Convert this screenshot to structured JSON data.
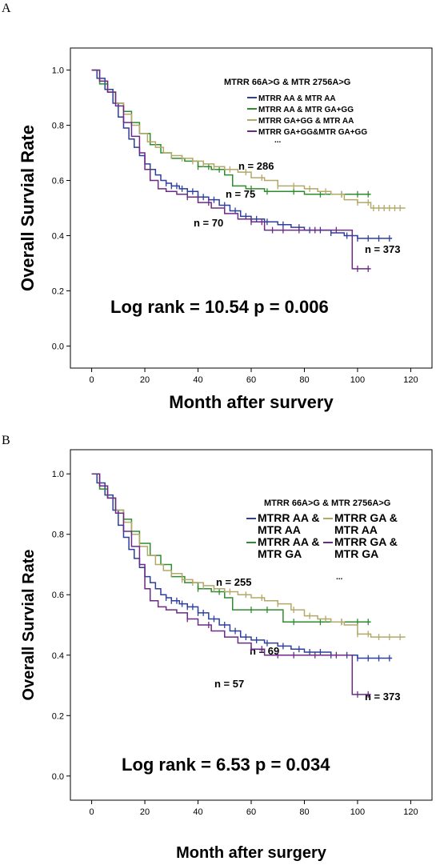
{
  "chart_data": [
    {
      "panel_label": "A",
      "type": "line",
      "xlabel": "Month after survery",
      "ylabel": "Overall Survial Rate",
      "xlim": [
        -8,
        128
      ],
      "ylim": [
        -0.08,
        1.08
      ],
      "xticks": [
        0,
        20,
        40,
        60,
        80,
        100,
        120
      ],
      "yticks": [
        0.0,
        0.2,
        0.4,
        0.6,
        0.8,
        1.0
      ],
      "legend_title": "MTRR 66A>G & MTR 2756A>G",
      "legend_layout": "single-column",
      "legend_ellipsis": "...",
      "legend_placement": "top-right",
      "annotation": "Log rank = 10.54  p = 0.006",
      "series": [
        {
          "name": "MTRR AA & MTR AA",
          "color": "#2d3e9e",
          "count_label": "n = 373",
          "x": [
            0,
            2,
            5,
            8,
            10,
            12,
            14,
            16,
            18,
            20,
            22,
            24,
            26,
            28,
            30,
            33,
            36,
            40,
            44,
            48,
            52,
            56,
            60,
            65,
            70,
            75,
            80,
            85,
            90,
            95,
            100,
            105,
            110,
            113
          ],
          "y": [
            1.0,
            0.97,
            0.93,
            0.88,
            0.83,
            0.79,
            0.75,
            0.72,
            0.69,
            0.66,
            0.64,
            0.62,
            0.6,
            0.59,
            0.58,
            0.57,
            0.56,
            0.54,
            0.53,
            0.51,
            0.49,
            0.47,
            0.46,
            0.45,
            0.44,
            0.43,
            0.42,
            0.42,
            0.41,
            0.4,
            0.39,
            0.39,
            0.39,
            0.39
          ],
          "censor_x": [
            28,
            30,
            32,
            34,
            36,
            38,
            40,
            42,
            46,
            50,
            54,
            58,
            62,
            66,
            72,
            78,
            82,
            86,
            90,
            96,
            100,
            104,
            108,
            112
          ]
        },
        {
          "name": "MTRR AA & MTR GA+GG",
          "color": "#2e8b2e",
          "count_label": "n = 75",
          "x": [
            0,
            3,
            6,
            9,
            12,
            15,
            18,
            22,
            26,
            30,
            35,
            40,
            45,
            50,
            53,
            58,
            65,
            72,
            80,
            90,
            100,
            105
          ],
          "y": [
            1.0,
            0.95,
            0.92,
            0.88,
            0.85,
            0.81,
            0.77,
            0.73,
            0.7,
            0.68,
            0.67,
            0.65,
            0.64,
            0.62,
            0.58,
            0.57,
            0.56,
            0.56,
            0.55,
            0.55,
            0.55,
            0.55
          ],
          "censor_x": [
            40,
            44,
            48,
            60,
            66,
            76,
            86,
            94,
            100,
            104
          ]
        },
        {
          "name": "MTRR GA+GG & MTR AA",
          "color": "#b3a868",
          "count_label": "n = 286",
          "x": [
            0,
            3,
            6,
            9,
            12,
            15,
            18,
            21,
            24,
            27,
            30,
            34,
            38,
            42,
            46,
            50,
            55,
            60,
            65,
            70,
            75,
            80,
            85,
            90,
            95,
            100,
            105,
            110,
            118
          ],
          "y": [
            1.0,
            0.96,
            0.92,
            0.88,
            0.84,
            0.8,
            0.77,
            0.74,
            0.72,
            0.7,
            0.69,
            0.68,
            0.67,
            0.66,
            0.65,
            0.64,
            0.63,
            0.61,
            0.6,
            0.58,
            0.58,
            0.57,
            0.56,
            0.55,
            0.53,
            0.52,
            0.5,
            0.5,
            0.5
          ],
          "censor_x": [
            30,
            34,
            38,
            42,
            46,
            52,
            58,
            64,
            70,
            76,
            82,
            88,
            94,
            100,
            104,
            106,
            108,
            110,
            112,
            114,
            116
          ]
        },
        {
          "name": "MTRR GA+GG&MTR GA+GG",
          "color": "#6b2a86",
          "count_label": "n = 70",
          "x": [
            0,
            3,
            6,
            9,
            12,
            15,
            18,
            20,
            22,
            25,
            28,
            32,
            36,
            40,
            45,
            50,
            55,
            60,
            65,
            70,
            80,
            90,
            97,
            98,
            105
          ],
          "y": [
            1.0,
            0.96,
            0.92,
            0.87,
            0.81,
            0.76,
            0.7,
            0.64,
            0.6,
            0.57,
            0.56,
            0.55,
            0.54,
            0.52,
            0.5,
            0.48,
            0.46,
            0.45,
            0.42,
            0.42,
            0.42,
            0.42,
            0.42,
            0.28,
            0.28
          ],
          "censor_x": [
            36,
            44,
            60,
            64,
            68,
            72,
            78,
            84,
            92,
            100,
            104
          ]
        }
      ]
    },
    {
      "panel_label": "B",
      "type": "line",
      "xlabel": "Month after surgery",
      "ylabel": "Overall Survial Rate",
      "xlim": [
        -8,
        128
      ],
      "ylim": [
        -0.08,
        1.08
      ],
      "xticks": [
        0,
        20,
        40,
        60,
        80,
        100,
        120
      ],
      "yticks": [
        0.0,
        0.2,
        0.4,
        0.6,
        0.8,
        1.0
      ],
      "legend_title": "MTRR 66A>G & MTR 2756A>G",
      "legend_layout": "two-column",
      "legend_ellipsis": "...",
      "legend_placement": "top-right",
      "annotation": "Log rank = 6.53 p = 0.034",
      "series": [
        {
          "name": "MTRR AA & MTR AA",
          "color": "#2d3e9e",
          "count_label": "n = 373",
          "x": [
            0,
            2,
            5,
            8,
            10,
            12,
            14,
            16,
            18,
            20,
            22,
            24,
            26,
            28,
            30,
            33,
            36,
            40,
            44,
            48,
            52,
            56,
            60,
            65,
            70,
            75,
            80,
            85,
            90,
            95,
            100,
            105,
            110,
            113
          ],
          "y": [
            1.0,
            0.97,
            0.93,
            0.88,
            0.83,
            0.79,
            0.75,
            0.72,
            0.69,
            0.66,
            0.64,
            0.62,
            0.6,
            0.59,
            0.58,
            0.57,
            0.56,
            0.54,
            0.52,
            0.5,
            0.48,
            0.46,
            0.45,
            0.44,
            0.43,
            0.42,
            0.41,
            0.41,
            0.4,
            0.4,
            0.39,
            0.39,
            0.39,
            0.39
          ],
          "censor_x": [
            28,
            30,
            32,
            34,
            36,
            38,
            40,
            42,
            46,
            50,
            54,
            58,
            62,
            66,
            72,
            78,
            82,
            86,
            90,
            96,
            100,
            104,
            108,
            112
          ]
        },
        {
          "name": "MTRR AA & MTR GA",
          "color": "#2e8b2e",
          "count_label": "n = 69",
          "x": [
            0,
            3,
            6,
            9,
            12,
            15,
            18,
            22,
            26,
            30,
            35,
            40,
            45,
            50,
            53,
            58,
            65,
            72,
            80,
            90,
            100,
            105
          ],
          "y": [
            1.0,
            0.95,
            0.92,
            0.88,
            0.85,
            0.81,
            0.77,
            0.73,
            0.7,
            0.66,
            0.64,
            0.62,
            0.61,
            0.59,
            0.55,
            0.55,
            0.55,
            0.51,
            0.51,
            0.51,
            0.51,
            0.51
          ],
          "censor_x": [
            40,
            48,
            60,
            66,
            76,
            86,
            94,
            100,
            104
          ]
        },
        {
          "name": "MTRR GA & MTR AA",
          "color": "#b3a868",
          "count_label": "n = 255",
          "x": [
            0,
            3,
            6,
            9,
            12,
            15,
            18,
            21,
            24,
            27,
            30,
            34,
            38,
            42,
            46,
            50,
            55,
            60,
            65,
            70,
            75,
            80,
            85,
            90,
            95,
            100,
            105,
            110,
            118
          ],
          "y": [
            1.0,
            0.96,
            0.92,
            0.88,
            0.84,
            0.8,
            0.76,
            0.73,
            0.7,
            0.68,
            0.67,
            0.65,
            0.64,
            0.63,
            0.62,
            0.61,
            0.6,
            0.59,
            0.58,
            0.57,
            0.55,
            0.53,
            0.52,
            0.51,
            0.5,
            0.47,
            0.46,
            0.46,
            0.46
          ],
          "censor_x": [
            30,
            34,
            38,
            42,
            46,
            52,
            58,
            64,
            70,
            76,
            82,
            88,
            94,
            100,
            104,
            108,
            112,
            116
          ]
        },
        {
          "name": "MTRR GA & MTR GA",
          "color": "#6b2a86",
          "count_label": "n = 57",
          "x": [
            0,
            3,
            6,
            9,
            12,
            15,
            18,
            20,
            22,
            25,
            28,
            32,
            36,
            40,
            45,
            50,
            55,
            60,
            65,
            70,
            80,
            90,
            97,
            98,
            105
          ],
          "y": [
            1.0,
            0.96,
            0.92,
            0.87,
            0.81,
            0.76,
            0.7,
            0.62,
            0.58,
            0.56,
            0.55,
            0.54,
            0.52,
            0.5,
            0.48,
            0.46,
            0.44,
            0.42,
            0.4,
            0.4,
            0.4,
            0.4,
            0.4,
            0.27,
            0.27
          ],
          "censor_x": [
            36,
            44,
            60,
            64,
            70,
            76,
            84,
            92,
            100,
            104
          ]
        }
      ]
    }
  ]
}
